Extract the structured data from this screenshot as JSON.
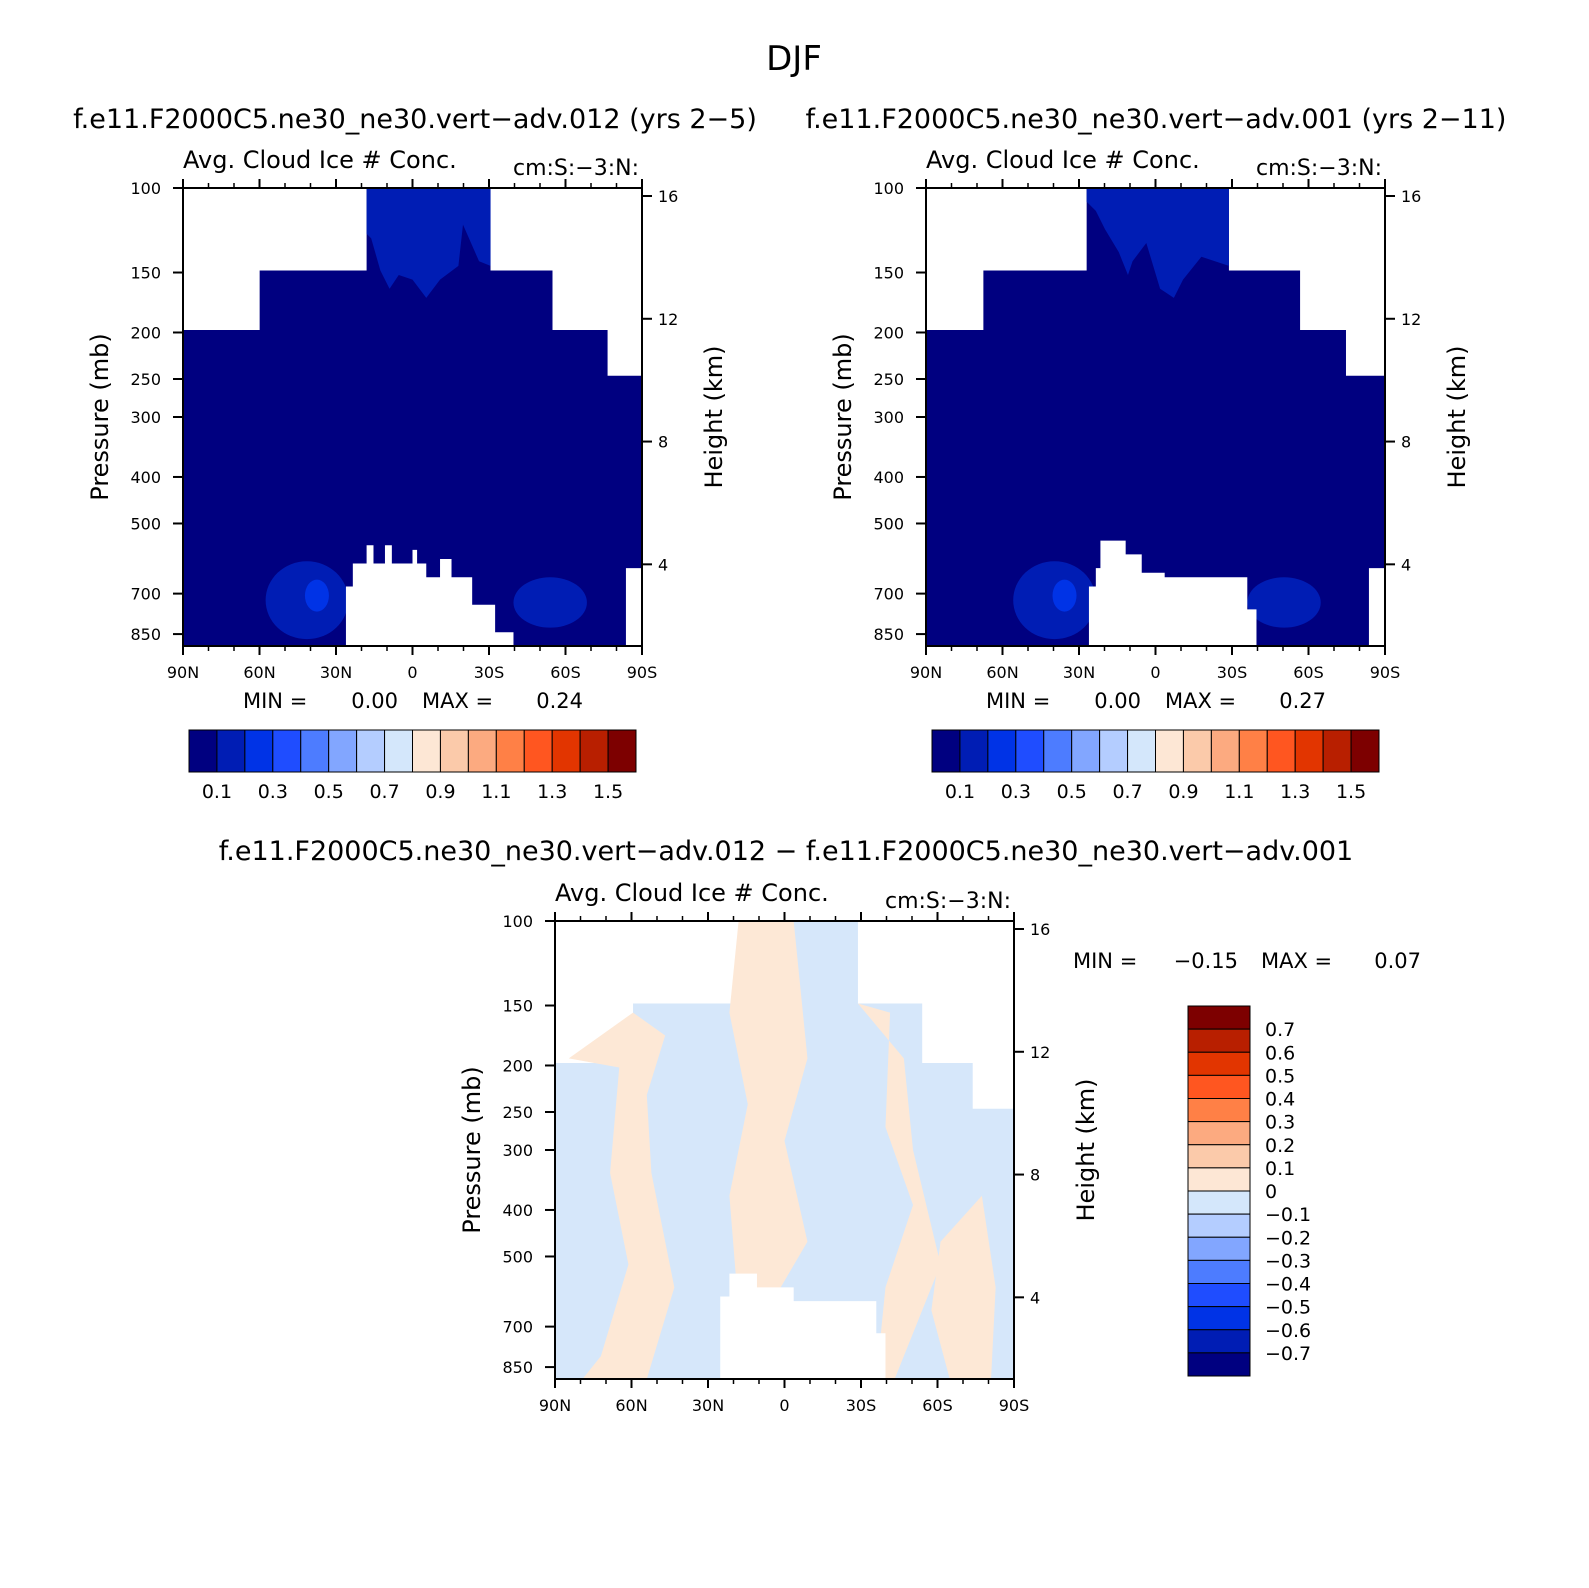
{
  "figure": {
    "season": "DJF",
    "colors": {
      "blue_ramp": [
        "#000080",
        "#001db4",
        "#0033e6",
        "#1f4dff",
        "#4d7cff",
        "#82a6ff",
        "#b4cdff",
        "#d4e7fb"
      ],
      "red_ramp": [
        "#fde7d5",
        "#fbcaaa",
        "#fcaa80",
        "#ff8046",
        "#ff5620",
        "#e23500",
        "#b81f00",
        "#7d0000"
      ],
      "diff_pos": "#fde8d6",
      "diff_neg": "#d6e7fa"
    }
  },
  "chart_data": [
    {
      "type": "heatmap",
      "panel": "top-left",
      "case_title": "f.e11.F2000C5.ne30_ne30.vert-adv.012 (yrs 2-5)",
      "title": "Avg. Cloud Ice # Conc.",
      "units": "cm:S:-3:N:",
      "xlabel": "",
      "ylabel": "Pressure (mb)",
      "ylabel_right": "Height (km)",
      "x_ticks": [
        "90N",
        "60N",
        "30N",
        "0",
        "30S",
        "60S",
        "90S"
      ],
      "y_ticks": [
        100,
        150,
        200,
        250,
        300,
        400,
        500,
        700,
        850
      ],
      "y_right_ticks": [
        16,
        12,
        8,
        4
      ],
      "ylim": [
        100,
        900
      ],
      "y_scale": "log",
      "min_label": "MIN =",
      "min_value": "0.00",
      "max_label": "MAX =",
      "max_value": "0.24",
      "colorbar_labels": [
        "0.1",
        "0.3",
        "0.5",
        "0.7",
        "0.9",
        "1.1",
        "1.3",
        "1.5"
      ],
      "colorbar_orientation": "horizontal"
    },
    {
      "type": "heatmap",
      "panel": "top-right",
      "case_title": "f.e11.F2000C5.ne30_ne30.vert-adv.001 (yrs 2-11)",
      "title": "Avg. Cloud Ice # Conc.",
      "units": "cm:S:-3:N:",
      "xlabel": "",
      "ylabel": "Pressure (mb)",
      "ylabel_right": "Height (km)",
      "x_ticks": [
        "90N",
        "60N",
        "30N",
        "0",
        "30S",
        "60S",
        "90S"
      ],
      "y_ticks": [
        100,
        150,
        200,
        250,
        300,
        400,
        500,
        700,
        850
      ],
      "y_right_ticks": [
        16,
        12,
        8,
        4
      ],
      "ylim": [
        100,
        900
      ],
      "y_scale": "log",
      "min_label": "MIN =",
      "min_value": "0.00",
      "max_label": "MAX =",
      "max_value": "0.27",
      "colorbar_labels": [
        "0.1",
        "0.3",
        "0.5",
        "0.7",
        "0.9",
        "1.1",
        "1.3",
        "1.5"
      ],
      "colorbar_orientation": "horizontal"
    },
    {
      "type": "heatmap",
      "panel": "bottom",
      "case_title": "f.e11.F2000C5.ne30_ne30.vert-adv.012 - f.e11.F2000C5.ne30_ne30.vert-adv.001",
      "title": "Avg. Cloud Ice # Conc.",
      "units": "cm:S:-3:N:",
      "xlabel": "",
      "ylabel": "Pressure (mb)",
      "ylabel_right": "Height (km)",
      "x_ticks": [
        "90N",
        "60N",
        "30N",
        "0",
        "30S",
        "60S",
        "90S"
      ],
      "y_ticks": [
        100,
        150,
        200,
        250,
        300,
        400,
        500,
        700,
        850
      ],
      "y_right_ticks": [
        16,
        12,
        8,
        4
      ],
      "ylim": [
        100,
        900
      ],
      "y_scale": "log",
      "min_label": "MIN =",
      "min_value": "-0.15",
      "max_label": "MAX =",
      "max_value": "0.07",
      "colorbar_labels": [
        "0.7",
        "0.6",
        "0.5",
        "0.4",
        "0.3",
        "0.2",
        "0.1",
        "0",
        "-0.1",
        "-0.2",
        "-0.3",
        "-0.4",
        "-0.5",
        "-0.6",
        "-0.7"
      ],
      "colorbar_orientation": "vertical"
    }
  ]
}
